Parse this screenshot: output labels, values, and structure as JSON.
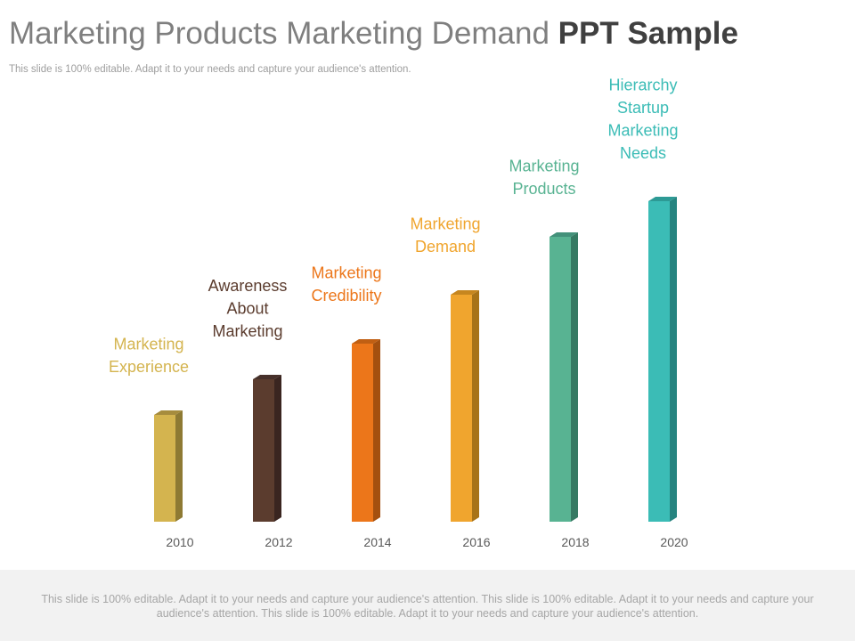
{
  "header": {
    "title_light": "Marketing Products Marketing Demand",
    "title_bold": "PPT Sample",
    "subtitle": "This slide is 100% editable. Adapt it to your needs and capture your audience's attention."
  },
  "chart_data": {
    "type": "bar",
    "title": "",
    "xlabel": "",
    "ylabel": "",
    "categories": [
      "2010",
      "2012",
      "2014",
      "2016",
      "2018",
      "2020"
    ],
    "values": [
      1.2,
      1.6,
      2.0,
      2.55,
      3.2,
      3.6
    ],
    "ylim": [
      0,
      4
    ],
    "grid": false,
    "annotations": [
      "Marketing Experience",
      "Awareness About Marketing",
      "Marketing Credibility",
      "Marketing Demand",
      "Marketing Products",
      "Hierarchy Startup Marketing Needs"
    ],
    "annotation_lines": [
      [
        "Marketing",
        "Experience"
      ],
      [
        "Awareness",
        "About",
        "Marketing"
      ],
      [
        "Marketing",
        "Credibility"
      ],
      [
        "Marketing",
        "Demand"
      ],
      [
        "Marketing",
        "Products"
      ],
      [
        "Hierarchy",
        "Startup",
        "Marketing",
        "Needs"
      ]
    ],
    "colors": {
      "bar_front": [
        "#d4b44f",
        "#5b3c2e",
        "#ec761a",
        "#f0a52e",
        "#58b392",
        "#3bbcb6"
      ],
      "bar_side": [
        "#8e7a33",
        "#3a2520",
        "#a4500f",
        "#a87318",
        "#367a63",
        "#268480"
      ],
      "bar_top": [
        "#a68c3d",
        "#46302a",
        "#c05f13",
        "#c6861f",
        "#43917a",
        "#2d9a95"
      ],
      "label": [
        "#d4b44f",
        "#5b3c2e",
        "#ec761a",
        "#f0a52e",
        "#58b392",
        "#3bbcb6"
      ]
    }
  },
  "footer": {
    "text": "This slide is 100% editable. Adapt it to your needs and capture your audience's attention. This slide is 100% editable. Adapt it to your needs and capture your audience's attention. This slide is 100% editable. Adapt it to your needs and capture your audience's attention."
  }
}
